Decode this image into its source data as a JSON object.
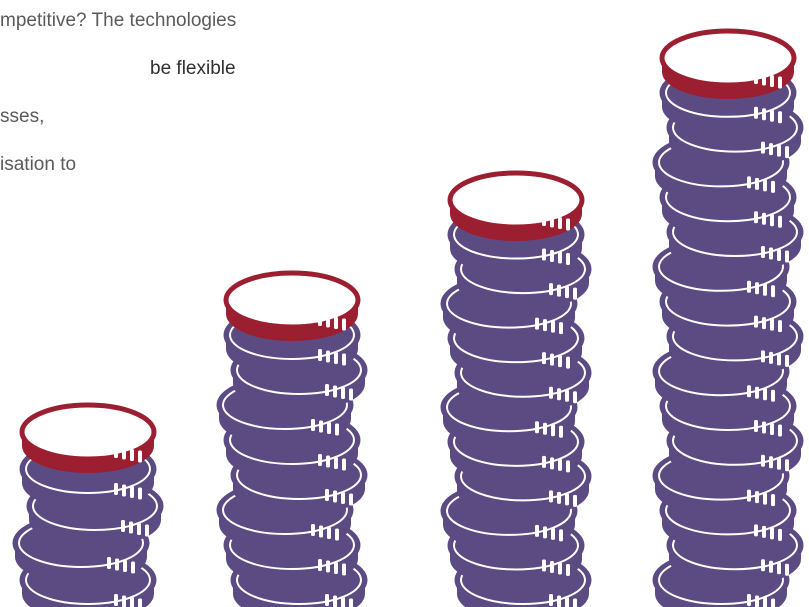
{
  "paragraph": {
    "lines": [
      "mpetitive? The technologies",
      "be flexible",
      "sses,",
      "isation to"
    ]
  }
}
